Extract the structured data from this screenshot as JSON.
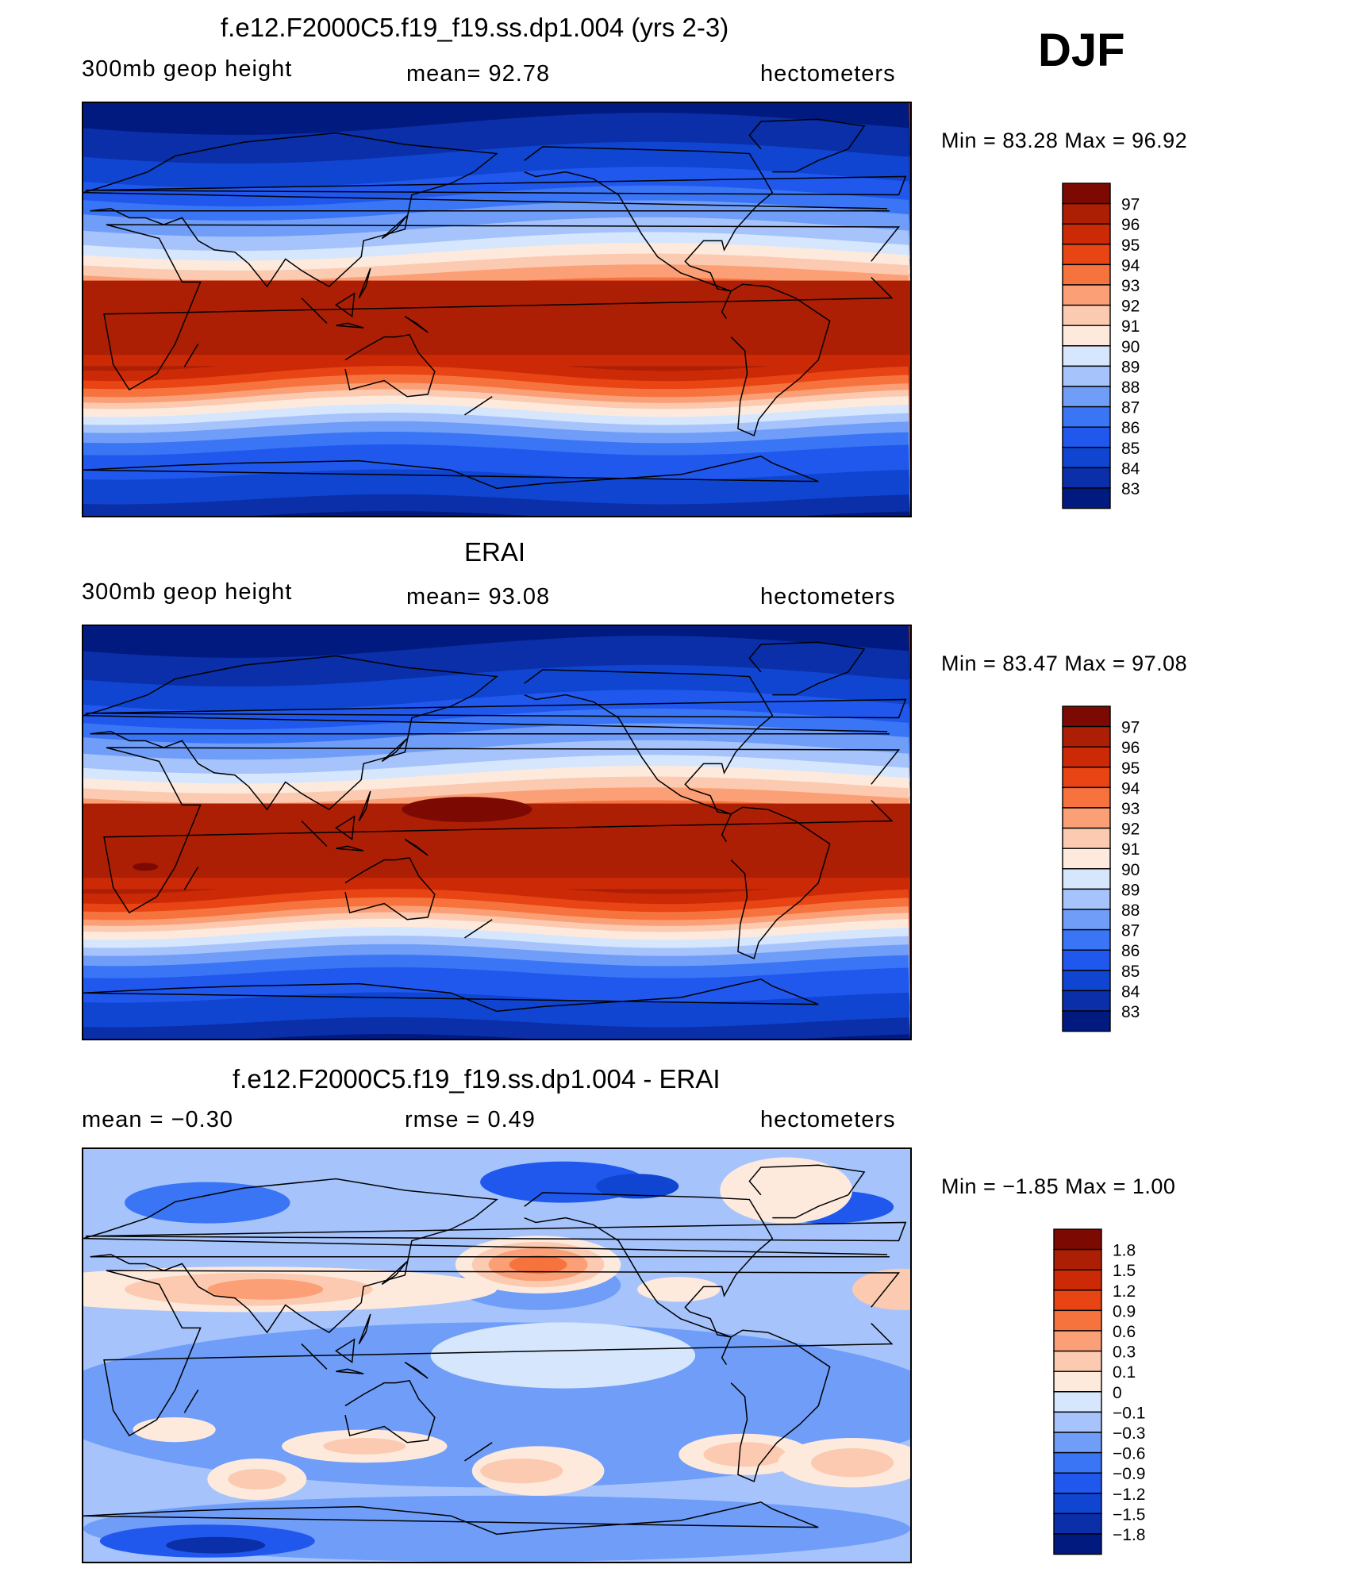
{
  "season": "DJF",
  "colors": {
    "height_scale": [
      "#011a80",
      "#0a2fa8",
      "#0f45d0",
      "#2058ee",
      "#3a75f5",
      "#6f9df8",
      "#a6c4fb",
      "#d5e6fd",
      "#fdeadd",
      "#fccab0",
      "#fb9f76",
      "#f7733e",
      "#e84414",
      "#cc2a07",
      "#ad1f05",
      "#7c0a02"
    ],
    "diff_scale": [
      "#011a80",
      "#0a2fa8",
      "#0f45d0",
      "#2058ee",
      "#3a75f5",
      "#6f9df8",
      "#a6c4fb",
      "#d5e6fd",
      "#fdeadd",
      "#fccab0",
      "#fb9f76",
      "#f7733e",
      "#e84414",
      "#cc2a07",
      "#ad1f05",
      "#7c0a02"
    ]
  },
  "panels": [
    {
      "title": "f.e12.F2000C5.f19_f19.ss.dp1.004 (yrs 2-3)",
      "left": "300mb  geop  height",
      "center": "mean=   92.78",
      "right": "hectometers",
      "minmax": "Min  =    83.28  Max  =    96.92",
      "legend_labels": [
        "97",
        "96",
        "95",
        "94",
        "93",
        "92",
        "91",
        "90",
        "89",
        "88",
        "87",
        "86",
        "85",
        "84",
        "83"
      ]
    },
    {
      "title": "ERAI",
      "left": "300mb  geop  height",
      "center": "mean=   93.08",
      "right": "hectometers",
      "minmax": "Min  =    83.47  Max  =    97.08",
      "legend_labels": [
        "97",
        "96",
        "95",
        "94",
        "93",
        "92",
        "91",
        "90",
        "89",
        "88",
        "87",
        "86",
        "85",
        "84",
        "83"
      ]
    },
    {
      "title": "f.e12.F2000C5.f19_f19.ss.dp1.004 - ERAI",
      "left": "mean  =    −0.30",
      "center": "rmse  =     0.49",
      "right": "hectometers",
      "minmax": "Min  =    −1.85  Max  =     1.00",
      "legend_labels": [
        "1.8",
        "1.5",
        "1.2",
        "0.9",
        "0.6",
        "0.3",
        "0.1",
        "0",
        "−0.1",
        "−0.3",
        "−0.6",
        "−0.9",
        "−1.2",
        "−1.5",
        "−1.8"
      ]
    }
  ],
  "chart_data": [
    {
      "type": "heatmap",
      "title": "f.e12.F2000C5.f19_f19.ss.dp1.004 (yrs 2-3)",
      "variable": "300mb  geop  height",
      "units": "hectometers",
      "mean": 92.78,
      "min": 83.28,
      "max": 96.92,
      "contour_levels": [
        83,
        84,
        85,
        86,
        87,
        88,
        89,
        90,
        91,
        92,
        93,
        94,
        95,
        96,
        97
      ],
      "projection": "cylindrical-equidistant",
      "center_longitude": 180
    },
    {
      "type": "heatmap",
      "title": "ERAI",
      "variable": "300mb  geop  height",
      "units": "hectometers",
      "mean": 93.08,
      "min": 83.47,
      "max": 97.08,
      "contour_levels": [
        83,
        84,
        85,
        86,
        87,
        88,
        89,
        90,
        91,
        92,
        93,
        94,
        95,
        96,
        97
      ],
      "projection": "cylindrical-equidistant",
      "center_longitude": 180
    },
    {
      "type": "heatmap",
      "title": "f.e12.F2000C5.f19_f19.ss.dp1.004 - ERAI",
      "units": "hectometers",
      "mean": -0.3,
      "rmse": 0.49,
      "min": -1.85,
      "max": 1.0,
      "contour_levels": [
        -1.8,
        -1.5,
        -1.2,
        -0.9,
        -0.6,
        -0.3,
        -0.1,
        0,
        0.1,
        0.3,
        0.6,
        0.9,
        1.2,
        1.5,
        1.8
      ],
      "projection": "cylindrical-equidistant",
      "center_longitude": 180
    }
  ]
}
